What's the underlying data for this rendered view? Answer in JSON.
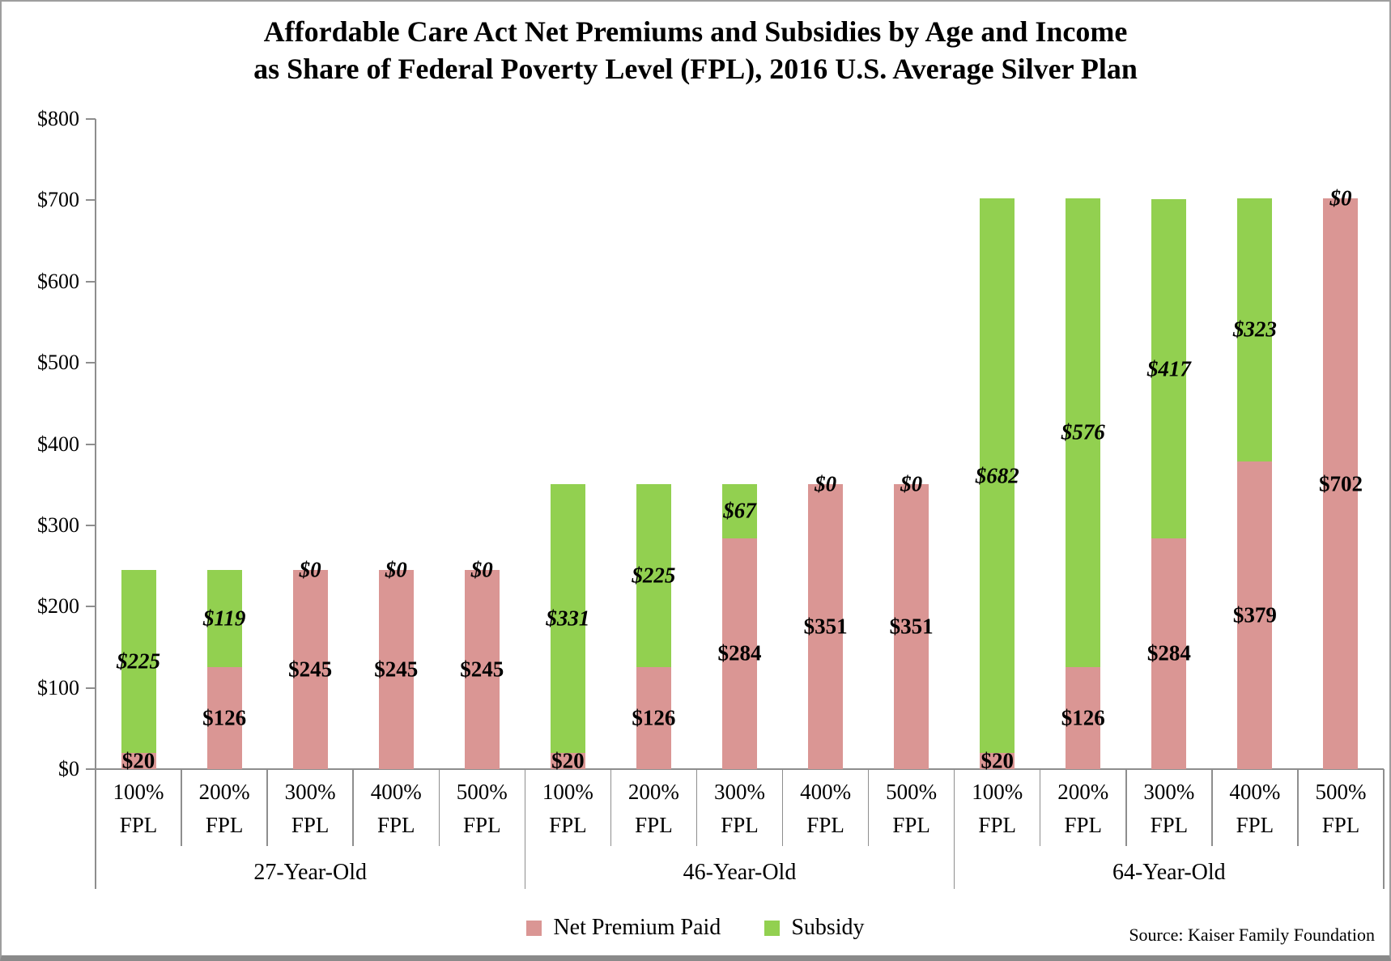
{
  "title": {
    "line1": "Affordable Care Act Net Premiums and Subsidies by Age and Income",
    "line2": "as Share of Federal Poverty Level (FPL), 2016 U.S. Average Silver Plan"
  },
  "legend": [
    {
      "label": "Net Premium Paid",
      "color": "#DA9694"
    },
    {
      "label": "Subsidy",
      "color": "#92D050"
    }
  ],
  "source": "Source: Kaiser Family Foundation",
  "chart_data": {
    "type": "bar",
    "stacked": true,
    "title": "Affordable Care Act Net Premiums and Subsidies by Age and Income as Share of Federal Poverty Level (FPL), 2016 U.S. Average Silver Plan",
    "group_labels": [
      "27-Year-Old",
      "46-Year-Old",
      "64-Year-Old"
    ],
    "categories": [
      "100% FPL",
      "200% FPL",
      "300% FPL",
      "400% FPL",
      "500% FPL"
    ],
    "series": [
      {
        "name": "Net Premium Paid",
        "color": "#DA9694",
        "values": [
          [
            20,
            126,
            245,
            245,
            245
          ],
          [
            20,
            126,
            284,
            351,
            351
          ],
          [
            20,
            126,
            284,
            379,
            702
          ]
        ]
      },
      {
        "name": "Subsidy",
        "color": "#92D050",
        "values": [
          [
            225,
            119,
            0,
            0,
            0
          ],
          [
            331,
            225,
            67,
            0,
            0
          ],
          [
            682,
            576,
            417,
            323,
            0
          ]
        ]
      }
    ],
    "value_prefix": "$",
    "ylim": [
      0,
      800
    ],
    "ytick_step": 100,
    "ytick_labels": [
      "$0",
      "$100",
      "$200",
      "$300",
      "$400",
      "$500",
      "$600",
      "$700",
      "$800"
    ],
    "xlabel": "",
    "ylabel": "",
    "grid": false,
    "legend_position": "bottom",
    "line_color": "#8E8E8E"
  }
}
